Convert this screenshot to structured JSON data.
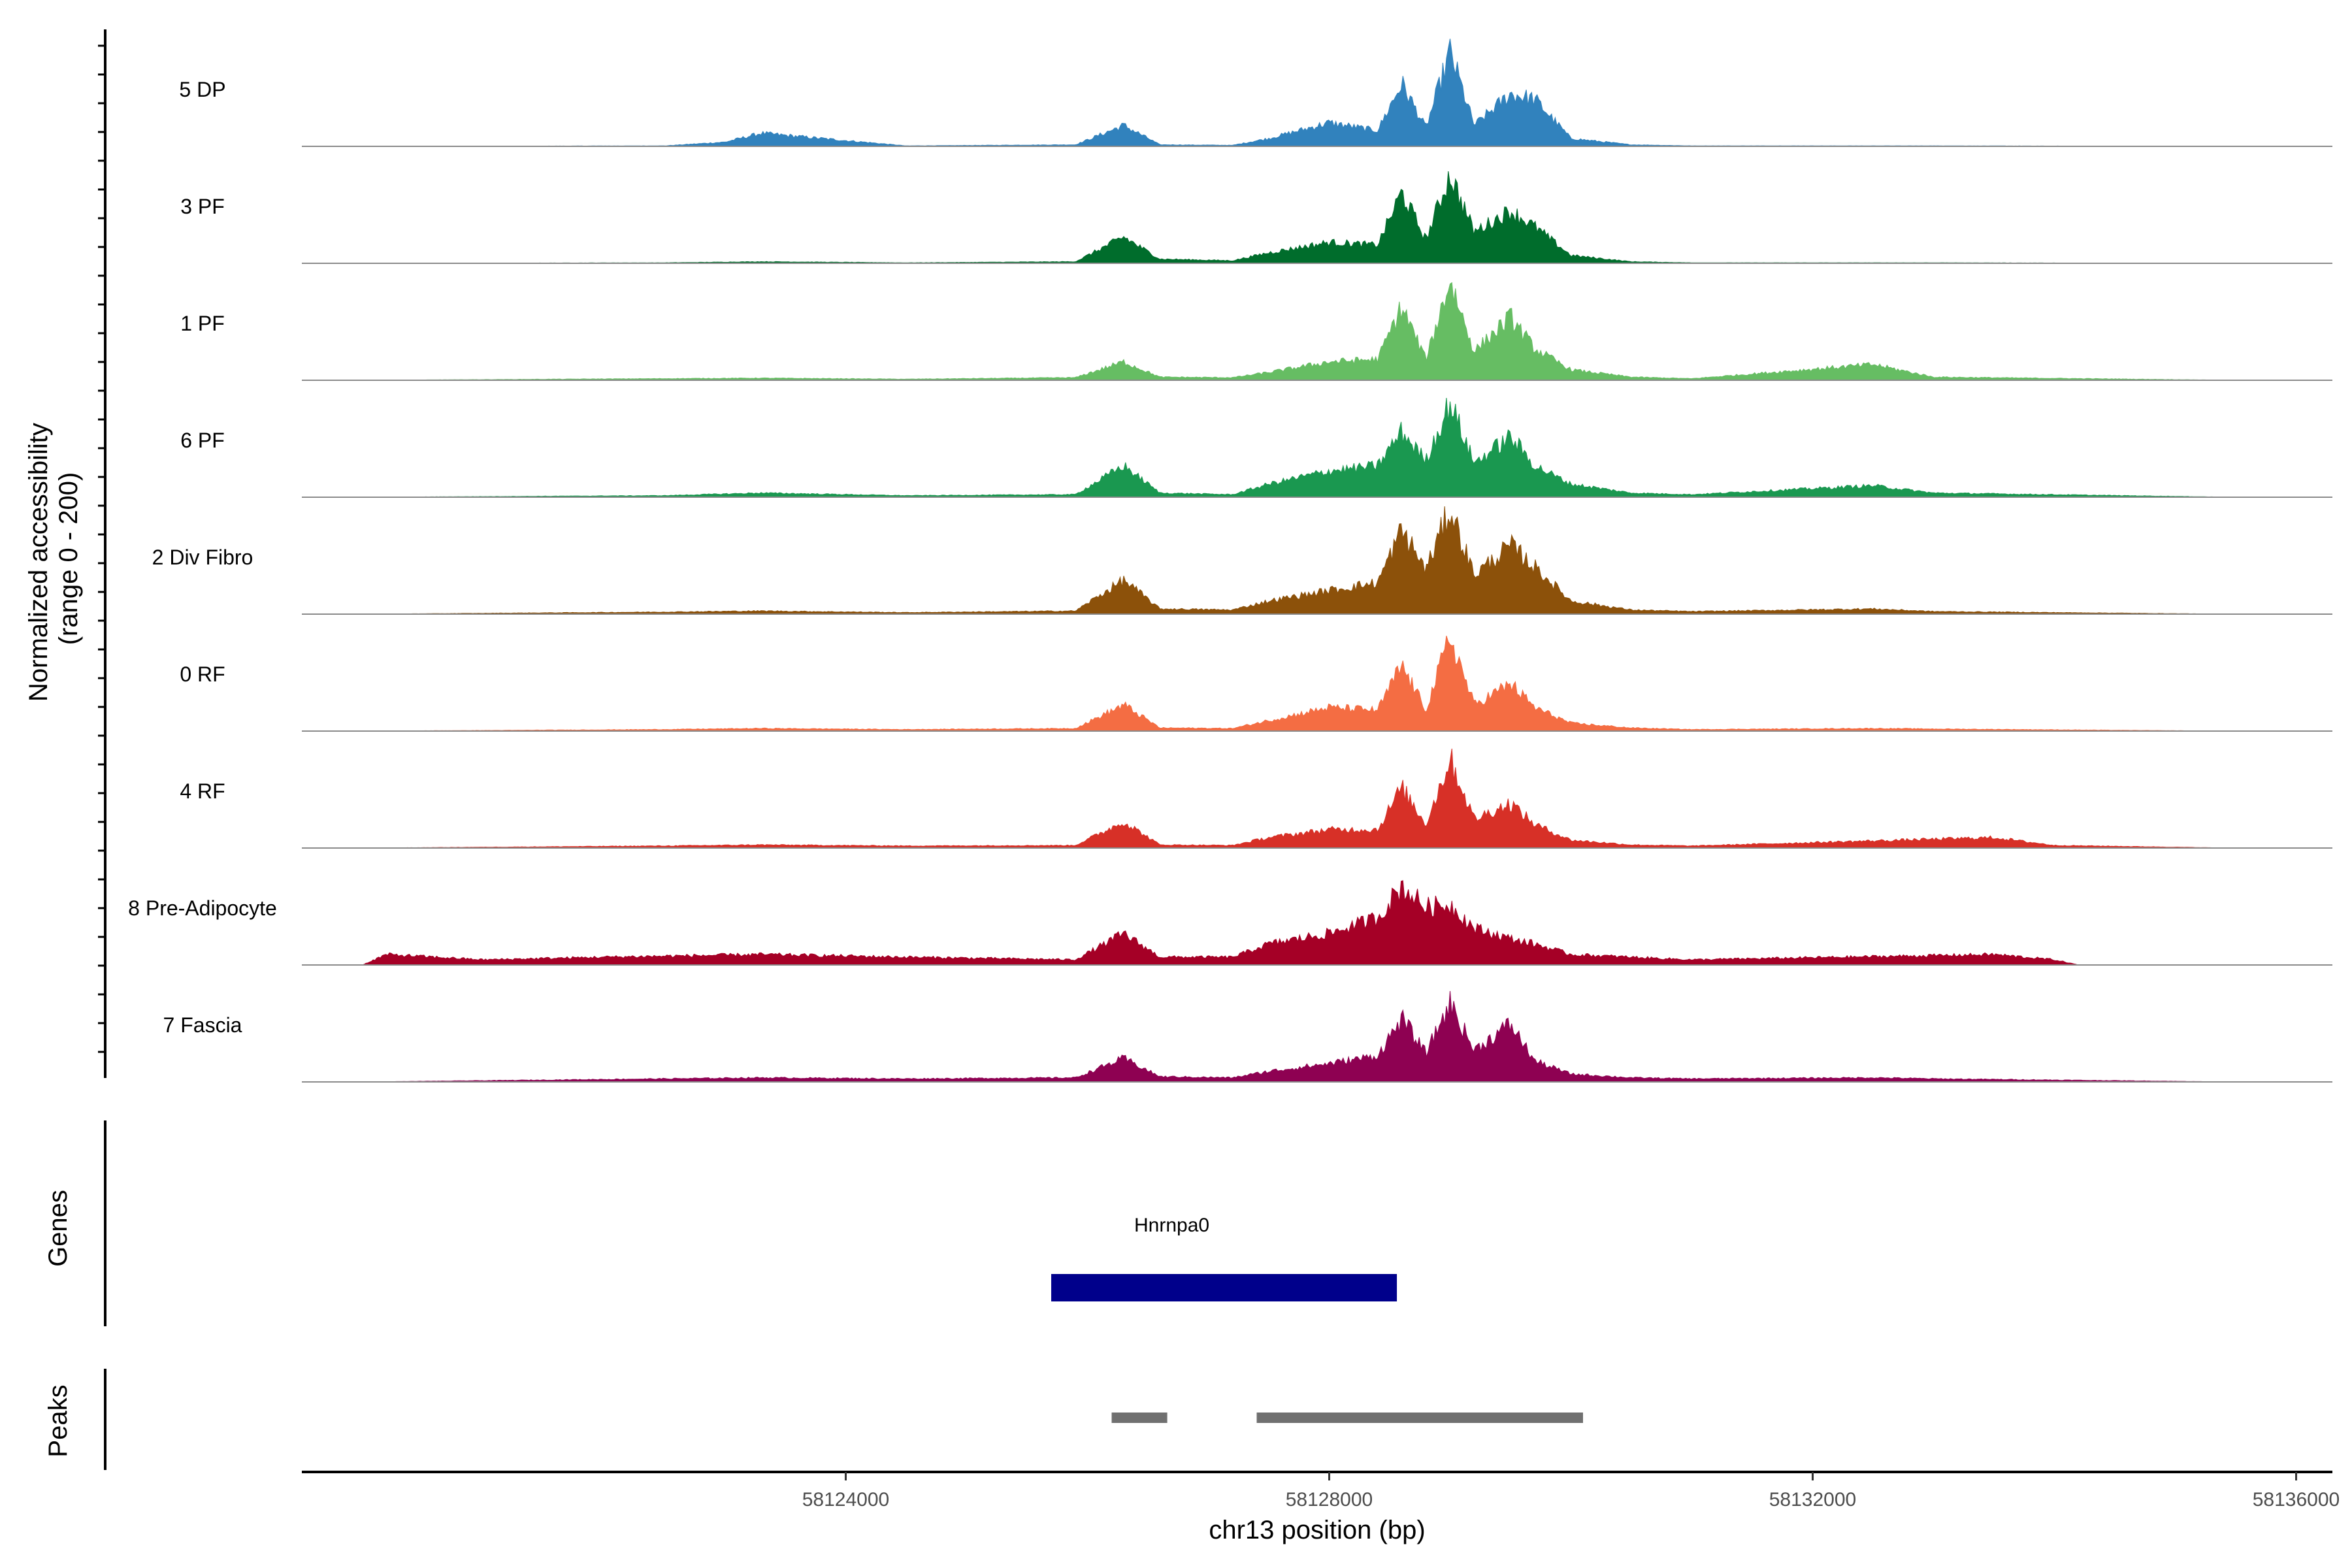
{
  "chart_data": {
    "type": "area",
    "title": "",
    "genomic_axis": {
      "chromosome": "chr13",
      "xlabel": "chr13 position (bp)",
      "xlim": [
        58119500,
        58136300
      ],
      "ticks": [
        58124000,
        58128000,
        58132000,
        58136000
      ],
      "tick_labels": [
        "58124000",
        "58128000",
        "58132000",
        "58136000"
      ]
    },
    "coverage_axis": {
      "ylabel_line1": "Normalized accessibility",
      "ylabel_line2": "(range 0 - 200)",
      "ylim": [
        0,
        200
      ]
    },
    "tracks": [
      {
        "name": "5 DP",
        "color": "#3182bd"
      },
      {
        "name": "3 PF",
        "color": "#006d2c"
      },
      {
        "name": "1 PF",
        "color": "#66bd63"
      },
      {
        "name": "6 PF",
        "color": "#1a9850"
      },
      {
        "name": "2 Div Fibro",
        "color": "#8c510a"
      },
      {
        "name": "0 RF",
        "color": "#f46d43"
      },
      {
        "name": "4 RF",
        "color": "#d73027"
      },
      {
        "name": "8 Pre-Adipocyte",
        "color": "#a50026"
      },
      {
        "name": "7 Fascia",
        "color": "#8e0152"
      }
    ],
    "series": [
      {
        "name": "5 DP",
        "x": [
          58120000,
          58122500,
          58123000,
          58123300,
          58124500,
          58125900,
          58126300,
          58126600,
          58127200,
          58127500,
          58128000,
          58128400,
          58128600,
          58128800,
          58129000,
          58129200,
          58129500,
          58129700,
          58130000,
          58130500,
          58131000,
          58133000,
          58135500
        ],
        "values": [
          0,
          1,
          8,
          25,
          1,
          3,
          40,
          3,
          2,
          15,
          45,
          30,
          120,
          35,
          180,
          40,
          100,
          90,
          15,
          3,
          1,
          1,
          0
        ]
      },
      {
        "name": "3 PF",
        "x": [
          58120000,
          58122500,
          58123300,
          58124500,
          58125900,
          58126300,
          58126600,
          58127200,
          58127500,
          58128000,
          58128400,
          58128600,
          58128800,
          58129000,
          58129200,
          58129500,
          58129700,
          58130000,
          58130500,
          58131000,
          58133000,
          58135500
        ],
        "values": [
          0,
          1,
          3,
          1,
          3,
          50,
          8,
          5,
          20,
          40,
          35,
          135,
          45,
          170,
          60,
          100,
          70,
          15,
          3,
          1,
          1,
          0
        ]
      },
      {
        "name": "1 PF",
        "x": [
          58120000,
          58122500,
          58123300,
          58124500,
          58125900,
          58126300,
          58126600,
          58127200,
          58127500,
          58128000,
          58128400,
          58128600,
          58128800,
          58129000,
          58129200,
          58129500,
          58129700,
          58130000,
          58130500,
          58131000,
          58132500,
          58133000,
          58135500
        ],
        "values": [
          0,
          3,
          4,
          2,
          5,
          35,
          6,
          5,
          15,
          35,
          40,
          140,
          40,
          190,
          55,
          120,
          60,
          20,
          6,
          3,
          30,
          6,
          0
        ]
      },
      {
        "name": "6 PF",
        "x": [
          58120000,
          58122500,
          58123300,
          58124500,
          58125900,
          58126300,
          58126600,
          58127200,
          58127500,
          58128000,
          58128400,
          58128600,
          58128800,
          58129000,
          58129200,
          58129500,
          58129700,
          58130000,
          58130500,
          58131000,
          58132500,
          58133000,
          58135500
        ],
        "values": [
          0,
          3,
          8,
          3,
          5,
          60,
          8,
          5,
          25,
          50,
          60,
          125,
          70,
          180,
          65,
          115,
          60,
          25,
          8,
          5,
          22,
          8,
          0
        ]
      },
      {
        "name": "2 Div Fibro",
        "x": [
          58120000,
          58122500,
          58123300,
          58124500,
          58125900,
          58126300,
          58126600,
          58127200,
          58127500,
          58128000,
          58128400,
          58128600,
          58128800,
          58129000,
          58129200,
          58129500,
          58129700,
          58130000,
          58130500,
          58131000,
          58132500,
          58133000,
          58135500
        ],
        "values": [
          0,
          4,
          6,
          3,
          6,
          65,
          10,
          8,
          25,
          45,
          60,
          160,
          85,
          200,
          75,
          130,
          90,
          25,
          8,
          5,
          10,
          5,
          0
        ]
      },
      {
        "name": "0 RF",
        "x": [
          58120000,
          58122500,
          58123300,
          58124500,
          58125900,
          58126300,
          58126600,
          58127200,
          58127500,
          58128000,
          58128400,
          58128600,
          58128800,
          58129000,
          58129200,
          58129500,
          58129700,
          58130000,
          58130500,
          58131000,
          58132500,
          58133000,
          58135500
        ],
        "values": [
          0,
          3,
          5,
          3,
          5,
          50,
          6,
          5,
          20,
          45,
          40,
          125,
          40,
          180,
          50,
          90,
          45,
          15,
          6,
          3,
          5,
          4,
          0
        ]
      },
      {
        "name": "4 RF",
        "x": [
          58120000,
          58122500,
          58123300,
          58124500,
          58125900,
          58126300,
          58126600,
          58127200,
          58127500,
          58128000,
          58128400,
          58128600,
          58128800,
          58129000,
          58129200,
          58129500,
          58129700,
          58130000,
          58130500,
          58131000,
          58133500,
          58134000,
          58135500
        ],
        "values": [
          0,
          4,
          6,
          4,
          5,
          50,
          6,
          5,
          20,
          35,
          35,
          115,
          45,
          170,
          55,
          85,
          45,
          15,
          6,
          4,
          20,
          5,
          0
        ]
      },
      {
        "name": "8 Pre-Adipocyte",
        "x": [
          58120000,
          58120200,
          58121000,
          58122000,
          58123300,
          58124500,
          58125900,
          58126300,
          58126600,
          58127200,
          58127500,
          58128000,
          58128400,
          58128600,
          58128800,
          58129000,
          58129200,
          58129500,
          58129700,
          58130000,
          58130500,
          58131000,
          58133500,
          58134000,
          58134200
        ],
        "values": [
          0,
          20,
          10,
          15,
          20,
          15,
          10,
          60,
          15,
          15,
          40,
          60,
          90,
          150,
          110,
          115,
          70,
          50,
          40,
          20,
          15,
          10,
          20,
          10,
          0
        ]
      },
      {
        "name": "7 Fascia",
        "x": [
          58120000,
          58122500,
          58123300,
          58124500,
          58125900,
          58126300,
          58126600,
          58127200,
          58127500,
          58128000,
          58128400,
          58128600,
          58128800,
          58129000,
          58129200,
          58129500,
          58129700,
          58130000,
          58130500,
          58131000,
          58132500,
          58133000,
          58135500
        ],
        "values": [
          0,
          6,
          8,
          6,
          8,
          45,
          10,
          8,
          20,
          35,
          50,
          120,
          55,
          150,
          60,
          110,
          40,
          15,
          8,
          6,
          8,
          6,
          0
        ]
      }
    ],
    "genes": {
      "title": "Genes",
      "items": [
        {
          "name": "Hnrnpa0",
          "start": 58125700,
          "end": 58128560,
          "color": "#00008b"
        }
      ]
    },
    "peaks": {
      "title": "Peaks",
      "color": "#707070",
      "ranges": [
        [
          58126200,
          58126660
        ],
        [
          58127400,
          58130100
        ]
      ]
    }
  }
}
